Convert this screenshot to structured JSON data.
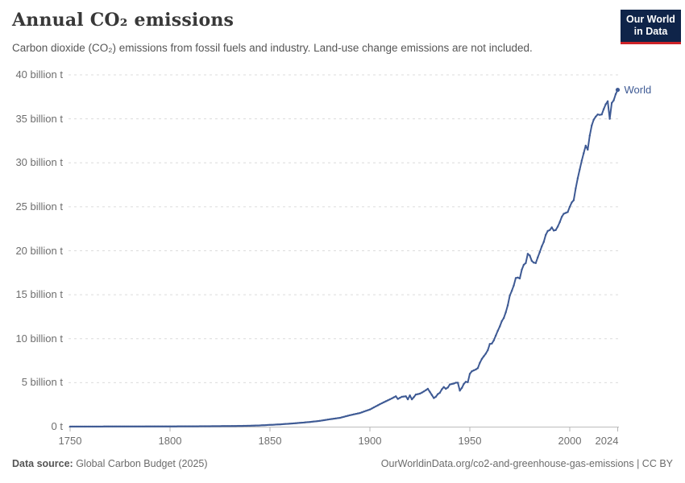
{
  "header": {
    "title": "Annual CO₂ emissions",
    "subtitle": "Carbon dioxide (CO₂) emissions from fossil fuels and industry. Land-use change emissions are not included.",
    "logo": {
      "line1": "Our World",
      "line2": "in Data",
      "bg_color": "#0f2449",
      "accent_color": "#cd2328"
    }
  },
  "chart_data": {
    "type": "line",
    "title": "Annual CO₂ emissions",
    "xlabel": "",
    "ylabel": "",
    "xlim": [
      1750,
      2024
    ],
    "ylim": [
      0,
      40
    ],
    "grid": "horizontal-dashed",
    "legend_position": "end-of-line",
    "x_ticks": [
      "1750",
      "1800",
      "1850",
      "1900",
      "1950",
      "2000",
      "2024"
    ],
    "y_ticks": [
      {
        "value": 0,
        "label": "0 t"
      },
      {
        "value": 5,
        "label": "5 billion t"
      },
      {
        "value": 10,
        "label": "10 billion t"
      },
      {
        "value": 15,
        "label": "15 billion t"
      },
      {
        "value": 20,
        "label": "20 billion t"
      },
      {
        "value": 25,
        "label": "25 billion t"
      },
      {
        "value": 30,
        "label": "30 billion t"
      },
      {
        "value": 35,
        "label": "35 billion t"
      },
      {
        "value": 40,
        "label": "40 billion t"
      }
    ],
    "unit": "billion tonnes CO₂",
    "series": [
      {
        "name": "World",
        "color": "#3e5a94",
        "points": [
          [
            1750,
            0.01
          ],
          [
            1755,
            0.011
          ],
          [
            1760,
            0.012
          ],
          [
            1765,
            0.013
          ],
          [
            1770,
            0.015
          ],
          [
            1775,
            0.017
          ],
          [
            1780,
            0.019
          ],
          [
            1785,
            0.021
          ],
          [
            1790,
            0.025
          ],
          [
            1795,
            0.028
          ],
          [
            1800,
            0.03
          ],
          [
            1805,
            0.033
          ],
          [
            1810,
            0.037
          ],
          [
            1815,
            0.042
          ],
          [
            1820,
            0.05
          ],
          [
            1825,
            0.058
          ],
          [
            1830,
            0.068
          ],
          [
            1835,
            0.082
          ],
          [
            1840,
            0.1
          ],
          [
            1845,
            0.14
          ],
          [
            1850,
            0.2
          ],
          [
            1855,
            0.26
          ],
          [
            1860,
            0.34
          ],
          [
            1865,
            0.43
          ],
          [
            1870,
            0.53
          ],
          [
            1875,
            0.66
          ],
          [
            1880,
            0.84
          ],
          [
            1885,
            1.0
          ],
          [
            1890,
            1.3
          ],
          [
            1895,
            1.55
          ],
          [
            1900,
            1.95
          ],
          [
            1905,
            2.55
          ],
          [
            1910,
            3.1
          ],
          [
            1913,
            3.45
          ],
          [
            1914,
            3.15
          ],
          [
            1916,
            3.4
          ],
          [
            1918,
            3.45
          ],
          [
            1919,
            3.1
          ],
          [
            1920,
            3.55
          ],
          [
            1921,
            3.1
          ],
          [
            1922,
            3.35
          ],
          [
            1923,
            3.65
          ],
          [
            1925,
            3.75
          ],
          [
            1927,
            4.0
          ],
          [
            1929,
            4.3
          ],
          [
            1930,
            3.95
          ],
          [
            1931,
            3.6
          ],
          [
            1932,
            3.25
          ],
          [
            1933,
            3.4
          ],
          [
            1934,
            3.7
          ],
          [
            1935,
            3.85
          ],
          [
            1936,
            4.25
          ],
          [
            1937,
            4.5
          ],
          [
            1938,
            4.3
          ],
          [
            1939,
            4.45
          ],
          [
            1940,
            4.8
          ],
          [
            1942,
            4.9
          ],
          [
            1943,
            5.0
          ],
          [
            1944,
            5.0
          ],
          [
            1945,
            4.1
          ],
          [
            1946,
            4.4
          ],
          [
            1947,
            4.85
          ],
          [
            1948,
            5.1
          ],
          [
            1949,
            5.05
          ],
          [
            1950,
            6.0
          ],
          [
            1951,
            6.3
          ],
          [
            1952,
            6.4
          ],
          [
            1953,
            6.5
          ],
          [
            1954,
            6.65
          ],
          [
            1955,
            7.25
          ],
          [
            1956,
            7.7
          ],
          [
            1957,
            8.0
          ],
          [
            1958,
            8.3
          ],
          [
            1959,
            8.7
          ],
          [
            1960,
            9.4
          ],
          [
            1961,
            9.45
          ],
          [
            1962,
            9.8
          ],
          [
            1963,
            10.35
          ],
          [
            1964,
            10.9
          ],
          [
            1965,
            11.4
          ],
          [
            1966,
            12.0
          ],
          [
            1967,
            12.35
          ],
          [
            1968,
            13.0
          ],
          [
            1969,
            13.8
          ],
          [
            1970,
            14.9
          ],
          [
            1971,
            15.45
          ],
          [
            1972,
            16.05
          ],
          [
            1973,
            16.9
          ],
          [
            1974,
            16.95
          ],
          [
            1975,
            16.85
          ],
          [
            1976,
            17.85
          ],
          [
            1977,
            18.4
          ],
          [
            1978,
            18.6
          ],
          [
            1979,
            19.65
          ],
          [
            1980,
            19.45
          ],
          [
            1981,
            18.85
          ],
          [
            1982,
            18.65
          ],
          [
            1983,
            18.6
          ],
          [
            1984,
            19.25
          ],
          [
            1985,
            19.85
          ],
          [
            1986,
            20.5
          ],
          [
            1987,
            21.0
          ],
          [
            1988,
            21.8
          ],
          [
            1989,
            22.25
          ],
          [
            1990,
            22.35
          ],
          [
            1991,
            22.65
          ],
          [
            1992,
            22.3
          ],
          [
            1993,
            22.35
          ],
          [
            1994,
            22.75
          ],
          [
            1995,
            23.25
          ],
          [
            1996,
            23.85
          ],
          [
            1997,
            24.2
          ],
          [
            1998,
            24.3
          ],
          [
            1999,
            24.4
          ],
          [
            2000,
            25.0
          ],
          [
            2001,
            25.5
          ],
          [
            2002,
            25.75
          ],
          [
            2003,
            27.1
          ],
          [
            2004,
            28.25
          ],
          [
            2005,
            29.25
          ],
          [
            2006,
            30.25
          ],
          [
            2007,
            31.1
          ],
          [
            2008,
            31.95
          ],
          [
            2009,
            31.5
          ],
          [
            2010,
            33.1
          ],
          [
            2011,
            34.25
          ],
          [
            2012,
            34.9
          ],
          [
            2013,
            35.25
          ],
          [
            2014,
            35.5
          ],
          [
            2015,
            35.45
          ],
          [
            2016,
            35.5
          ],
          [
            2017,
            36.1
          ],
          [
            2018,
            36.65
          ],
          [
            2019,
            37.0
          ],
          [
            2020,
            35.0
          ],
          [
            2021,
            36.8
          ],
          [
            2022,
            37.1
          ],
          [
            2023,
            37.8
          ],
          [
            2024,
            38.3
          ]
        ]
      }
    ]
  },
  "footer": {
    "source_label": "Data source:",
    "source_value": " Global Carbon Budget (2025)",
    "link": "OurWorldinData.org/co2-and-greenhouse-gas-emissions | CC BY"
  }
}
